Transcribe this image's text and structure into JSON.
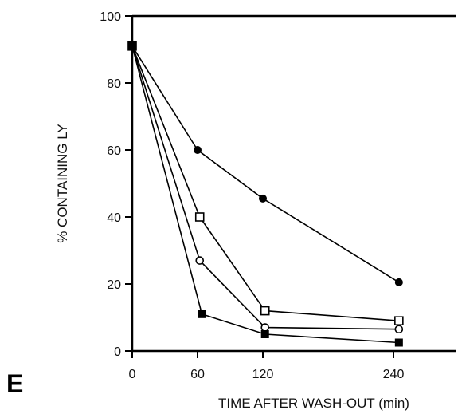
{
  "chart_data": {
    "type": "line",
    "panel_label": "E",
    "xlabel": "TIME AFTER WASH-OUT (min)",
    "ylabel": "% CONTAINING  LY",
    "xlim": [
      0,
      270
    ],
    "ylim": [
      0,
      100
    ],
    "x_ticks": [
      0,
      60,
      120,
      240
    ],
    "y_ticks": [
      0,
      20,
      40,
      60,
      80,
      100
    ],
    "grid": false,
    "series": [
      {
        "marker": "filled-circle",
        "color": "#000000",
        "points": [
          [
            0,
            91
          ],
          [
            60,
            60
          ],
          [
            120,
            45.5
          ],
          [
            245,
            20.5
          ]
        ]
      },
      {
        "marker": "open-square",
        "color": "#000000",
        "points": [
          [
            0,
            91
          ],
          [
            62,
            40
          ],
          [
            122,
            12
          ],
          [
            245,
            9
          ]
        ]
      },
      {
        "marker": "open-circle",
        "color": "#000000",
        "points": [
          [
            0,
            91
          ],
          [
            62,
            27
          ],
          [
            122,
            7
          ],
          [
            245,
            6.5
          ]
        ]
      },
      {
        "marker": "filled-square",
        "color": "#000000",
        "points": [
          [
            0,
            91
          ],
          [
            64,
            11
          ],
          [
            122,
            5
          ],
          [
            245,
            2.5
          ]
        ]
      }
    ]
  }
}
